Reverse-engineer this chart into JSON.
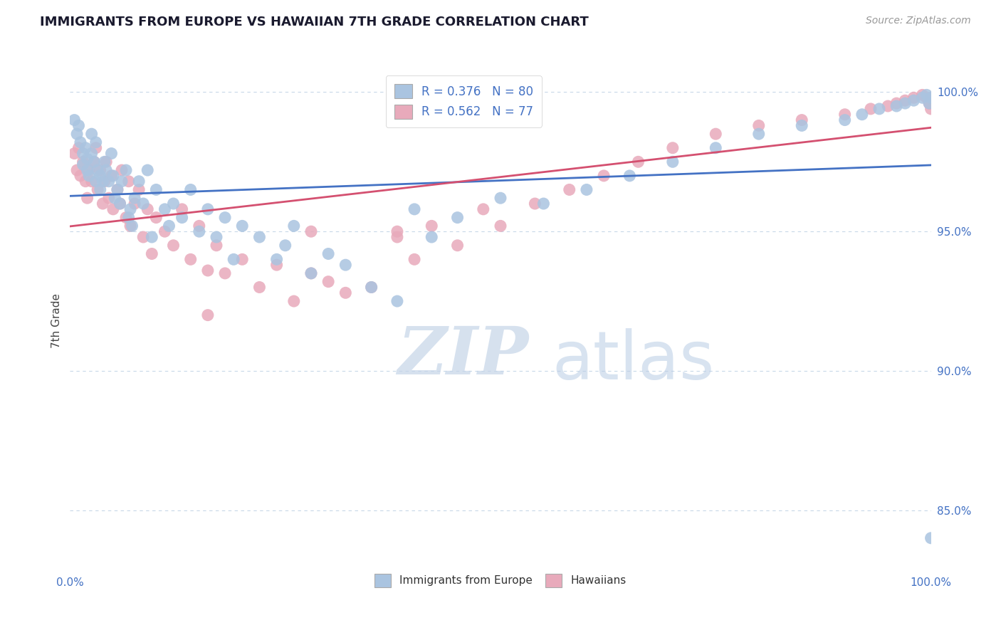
{
  "title": "IMMIGRANTS FROM EUROPE VS HAWAIIAN 7TH GRADE CORRELATION CHART",
  "source_text": "Source: ZipAtlas.com",
  "ylabel": "7th Grade",
  "xlim": [
    0.0,
    1.0
  ],
  "ylim": [
    0.828,
    1.008
  ],
  "ytick_labels": [
    "85.0%",
    "90.0%",
    "95.0%",
    "100.0%"
  ],
  "ytick_positions": [
    0.85,
    0.9,
    0.95,
    1.0
  ],
  "blue_color": "#aac4e0",
  "pink_color": "#e8aabb",
  "blue_line_color": "#4472c4",
  "pink_line_color": "#d45070",
  "legend_blue_label": "R = 0.376   N = 80",
  "legend_pink_label": "R = 0.562   N = 77",
  "legend_bottom_blue": "Immigrants from Europe",
  "legend_bottom_pink": "Hawaiians",
  "blue_scatter_x": [
    0.005,
    0.008,
    0.01,
    0.012,
    0.015,
    0.015,
    0.018,
    0.02,
    0.02,
    0.022,
    0.025,
    0.025,
    0.028,
    0.03,
    0.03,
    0.032,
    0.035,
    0.035,
    0.038,
    0.04,
    0.042,
    0.045,
    0.048,
    0.05,
    0.052,
    0.055,
    0.058,
    0.06,
    0.065,
    0.068,
    0.07,
    0.072,
    0.075,
    0.08,
    0.085,
    0.09,
    0.095,
    0.1,
    0.11,
    0.115,
    0.12,
    0.13,
    0.14,
    0.15,
    0.16,
    0.17,
    0.18,
    0.19,
    0.2,
    0.22,
    0.24,
    0.25,
    0.26,
    0.28,
    0.3,
    0.32,
    0.35,
    0.38,
    0.4,
    0.42,
    0.45,
    0.5,
    0.55,
    0.6,
    0.65,
    0.7,
    0.75,
    0.8,
    0.85,
    0.9,
    0.92,
    0.94,
    0.96,
    0.97,
    0.98,
    0.99,
    0.995,
    0.998,
    1.0,
    1.0
  ],
  "blue_scatter_y": [
    0.99,
    0.985,
    0.988,
    0.982,
    0.978,
    0.974,
    0.98,
    0.972,
    0.976,
    0.97,
    0.985,
    0.978,
    0.975,
    0.982,
    0.968,
    0.972,
    0.97,
    0.965,
    0.968,
    0.975,
    0.972,
    0.968,
    0.978,
    0.97,
    0.962,
    0.965,
    0.96,
    0.968,
    0.972,
    0.955,
    0.958,
    0.952,
    0.962,
    0.968,
    0.96,
    0.972,
    0.948,
    0.965,
    0.958,
    0.952,
    0.96,
    0.955,
    0.965,
    0.95,
    0.958,
    0.948,
    0.955,
    0.94,
    0.952,
    0.948,
    0.94,
    0.945,
    0.952,
    0.935,
    0.942,
    0.938,
    0.93,
    0.925,
    0.958,
    0.948,
    0.955,
    0.962,
    0.96,
    0.965,
    0.97,
    0.975,
    0.98,
    0.985,
    0.988,
    0.99,
    0.992,
    0.994,
    0.995,
    0.996,
    0.997,
    0.998,
    0.999,
    0.996,
    0.998,
    0.84
  ],
  "pink_scatter_x": [
    0.005,
    0.008,
    0.01,
    0.012,
    0.015,
    0.018,
    0.02,
    0.022,
    0.025,
    0.028,
    0.03,
    0.032,
    0.035,
    0.038,
    0.04,
    0.042,
    0.045,
    0.048,
    0.05,
    0.055,
    0.058,
    0.06,
    0.065,
    0.068,
    0.07,
    0.075,
    0.08,
    0.085,
    0.09,
    0.095,
    0.1,
    0.11,
    0.12,
    0.13,
    0.14,
    0.15,
    0.16,
    0.17,
    0.18,
    0.2,
    0.22,
    0.24,
    0.26,
    0.28,
    0.3,
    0.32,
    0.35,
    0.38,
    0.4,
    0.42,
    0.45,
    0.48,
    0.5,
    0.54,
    0.58,
    0.62,
    0.66,
    0.7,
    0.75,
    0.8,
    0.85,
    0.9,
    0.93,
    0.95,
    0.96,
    0.97,
    0.98,
    0.99,
    0.995,
    0.998,
    1.0,
    1.0,
    1.0,
    1.0,
    0.38,
    0.28,
    0.16
  ],
  "pink_scatter_y": [
    0.978,
    0.972,
    0.98,
    0.97,
    0.975,
    0.968,
    0.962,
    0.972,
    0.968,
    0.975,
    0.98,
    0.965,
    0.972,
    0.96,
    0.968,
    0.975,
    0.962,
    0.97,
    0.958,
    0.965,
    0.96,
    0.972,
    0.955,
    0.968,
    0.952,
    0.96,
    0.965,
    0.948,
    0.958,
    0.942,
    0.955,
    0.95,
    0.945,
    0.958,
    0.94,
    0.952,
    0.936,
    0.945,
    0.935,
    0.94,
    0.93,
    0.938,
    0.925,
    0.935,
    0.932,
    0.928,
    0.93,
    0.948,
    0.94,
    0.952,
    0.945,
    0.958,
    0.952,
    0.96,
    0.965,
    0.97,
    0.975,
    0.98,
    0.985,
    0.988,
    0.99,
    0.992,
    0.994,
    0.995,
    0.996,
    0.997,
    0.998,
    0.999,
    0.998,
    0.996,
    0.998,
    0.997,
    0.996,
    0.994,
    0.95,
    0.95,
    0.92
  ],
  "watermark_zip": "ZIP",
  "watermark_atlas": "atlas",
  "grid_color": "#c8d8e8",
  "background_color": "#ffffff"
}
